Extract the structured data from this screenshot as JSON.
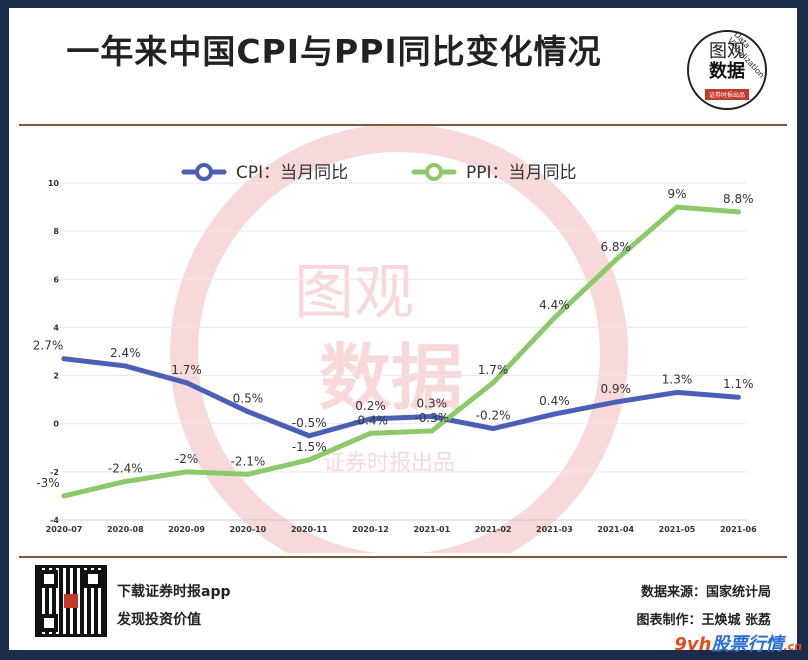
{
  "header": {
    "title": "一年来中国CPI与PPI同比变化情况",
    "logo_line1": "图观",
    "logo_line2": "数据",
    "logo_tag": "证券时报出品",
    "logo_arc": "Data Visualization"
  },
  "footer": {
    "app_line1": "下载证券时报app",
    "app_line2": "发现投资价值",
    "source": "数据来源：国家统计局",
    "makers": "图表制作：王焕城 张荔",
    "brand_main": "9vh",
    "brand_sub": "股票行情",
    "brand_cn": ".cn"
  },
  "colors": {
    "cpi": "#4a5fb5",
    "ppi": "#8cc96a",
    "background": "#1c2b4a",
    "watermark": "#e8a6a6"
  },
  "chart_data": {
    "type": "line",
    "title": "一年来中国CPI与PPI同比变化情况",
    "xlabel": "",
    "ylabel": "",
    "ylim": [
      -4,
      10
    ],
    "yticks": [
      "10",
      "8",
      "6",
      "4",
      "2",
      "0",
      "-2",
      "-4"
    ],
    "categories": [
      "2020-07",
      "2020-08",
      "2020-09",
      "2020-10",
      "2020-11",
      "2020-12",
      "2021-01",
      "2021-02",
      "2021-03",
      "2021-04",
      "2021-05",
      "2021-06"
    ],
    "legend": "top-center",
    "series": [
      {
        "name": "CPI：当月同比",
        "values": [
          2.7,
          2.4,
          1.7,
          0.5,
          -0.5,
          0.2,
          0.3,
          -0.2,
          0.4,
          0.9,
          1.3,
          1.1
        ],
        "labels": [
          "2.7%",
          "2.4%",
          "1.7%",
          "0.5%",
          "-0.5%",
          "0.2%",
          "0.3%",
          "-0.2%",
          "0.4%",
          "0.9%",
          "1.3%",
          "1.1%"
        ]
      },
      {
        "name": "PPI：当月同比",
        "values": [
          -3,
          -2.4,
          -2,
          -2.1,
          -1.5,
          -0.4,
          -0.3,
          1.7,
          4.4,
          6.8,
          9,
          8.8
        ],
        "labels": [
          "-3%",
          "-2.4%",
          "-2%",
          "-2.1%",
          "-1.5%",
          "-0.4%",
          "-0.3%",
          "1.7%",
          "4.4%",
          "6.8%",
          "9%",
          "8.8%"
        ]
      }
    ]
  }
}
